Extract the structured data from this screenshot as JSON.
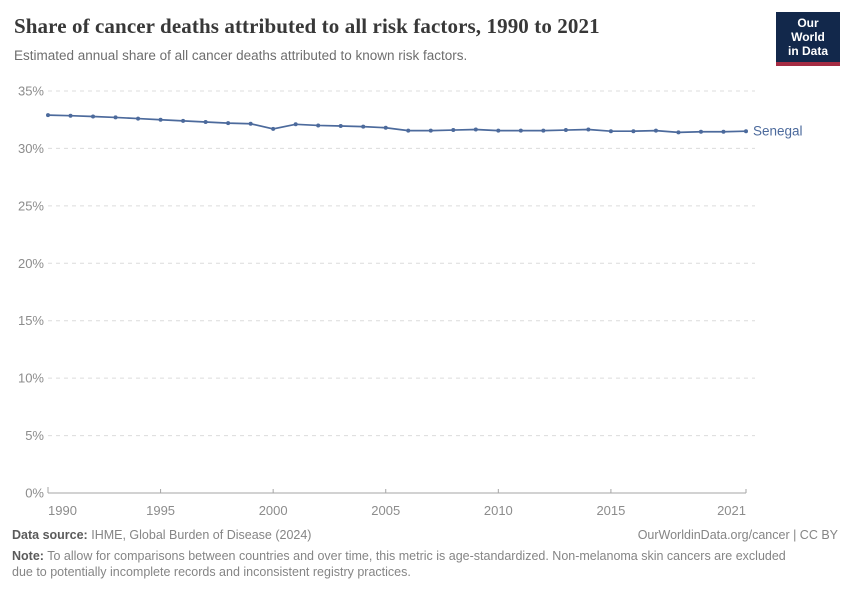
{
  "header": {
    "title": "Share of cancer deaths attributed to all risk factors, 1990 to 2021",
    "subtitle": "Estimated annual share of all cancer deaths attributed to known risk factors.",
    "logo": {
      "line1": "Our World",
      "line2": "in Data",
      "bg_color": "#12284b",
      "accent_color": "#a52c43"
    }
  },
  "chart_data": {
    "type": "line",
    "title": "Share of cancer deaths attributed to all risk factors, 1990 to 2021",
    "x": [
      1990,
      1991,
      1992,
      1993,
      1994,
      1995,
      1996,
      1997,
      1998,
      1999,
      2000,
      2001,
      2002,
      2003,
      2004,
      2005,
      2006,
      2007,
      2008,
      2009,
      2010,
      2011,
      2012,
      2013,
      2014,
      2015,
      2016,
      2017,
      2018,
      2019,
      2020,
      2021
    ],
    "series": [
      {
        "name": "Senegal",
        "color": "#4C6A9C",
        "values": [
          32.9,
          32.85,
          32.78,
          32.7,
          32.6,
          32.5,
          32.4,
          32.3,
          32.2,
          32.15,
          31.7,
          32.1,
          32.0,
          31.95,
          31.9,
          31.8,
          31.55,
          31.55,
          31.6,
          31.65,
          31.55,
          31.55,
          31.55,
          31.6,
          31.65,
          31.5,
          31.5,
          31.55,
          31.4,
          31.45,
          31.45,
          31.5
        ]
      }
    ],
    "xticks": [
      1990,
      1995,
      2000,
      2005,
      2010,
      2015,
      2021
    ],
    "yticks": [
      0,
      5,
      10,
      15,
      20,
      25,
      30,
      35
    ],
    "ytick_suffix": "%",
    "ylim": [
      0,
      35
    ],
    "xlim": [
      1990,
      2021
    ],
    "xlabel": "",
    "ylabel": "",
    "grid": "horizontal-dashed",
    "legend_position": "end-of-line",
    "grid_color": "#dcdcdc",
    "axis_color": "#a5a5a5"
  },
  "footer": {
    "datasource_label": "Data source:",
    "datasource_value": "IHME, Global Burden of Disease (2024)",
    "license": "OurWorldinData.org/cancer | CC BY",
    "note_label": "Note:",
    "note_text": "To allow for comparisons between countries and over time, this metric is age-standardized. Non-melanoma skin cancers are excluded due to potentially incomplete records and inconsistent registry practices."
  }
}
